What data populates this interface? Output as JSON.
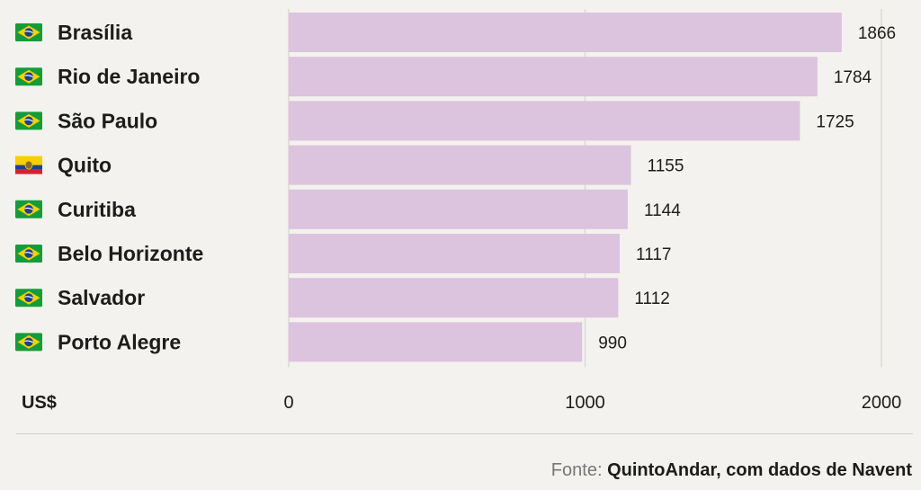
{
  "chart_data": {
    "type": "bar",
    "orientation": "horizontal",
    "categories": [
      "Brasília",
      "Rio de Janeiro",
      "São Paulo",
      "Quito",
      "Curitiba",
      "Belo Horizonte",
      "Salvador",
      "Porto Alegre"
    ],
    "values": [
      1866,
      1784,
      1725,
      1155,
      1144,
      1117,
      1112,
      990
    ],
    "flags": [
      "brazil",
      "brazil",
      "brazil",
      "ecuador",
      "brazil",
      "brazil",
      "brazil",
      "brazil"
    ],
    "xlim": [
      0,
      2000
    ],
    "x_ticks": [
      "0",
      "1000",
      "2000"
    ],
    "unit_label": "US$",
    "bar_color": "#dcc3de",
    "grid": true
  },
  "source": {
    "prefix": "Fonte:",
    "text": "QuintoAndar, com dados de Navent"
  },
  "colors": {
    "background": "#f3f2ee",
    "gridline": "#d8d8d3",
    "brazil_green": "#169b3c",
    "brazil_yellow": "#f4d300",
    "brazil_blue": "#1f3f8f",
    "ecuador_yellow": "#f5cf00",
    "ecuador_blue": "#1d3f95",
    "ecuador_red": "#d62128"
  }
}
